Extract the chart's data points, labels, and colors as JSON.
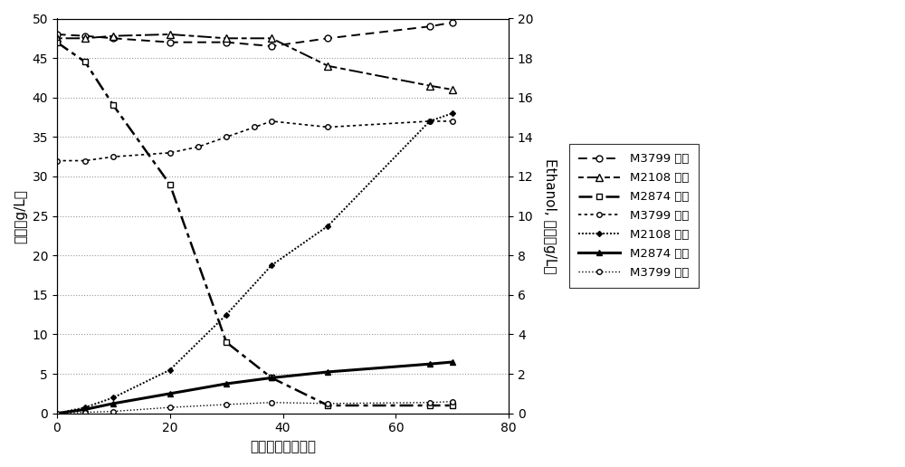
{
  "xlabel": "发酵时间（小时）",
  "ylabel_left": "木糖（g/L）",
  "ylabel_right": "Ethanol, 醋酸（g/L）",
  "xlim": [
    0,
    80
  ],
  "ylim_left": [
    0,
    50
  ],
  "ylim_right": [
    0,
    20
  ],
  "xticks": [
    0,
    20,
    40,
    60,
    80
  ],
  "yticks_left": [
    0,
    5,
    10,
    15,
    20,
    25,
    30,
    35,
    40,
    45,
    50
  ],
  "yticks_right": [
    0,
    2,
    4,
    6,
    8,
    10,
    12,
    14,
    16,
    18,
    20
  ],
  "M3799_xyl_x": [
    0,
    5,
    10,
    20,
    30,
    38,
    48,
    66,
    70
  ],
  "M3799_xyl_y": [
    48.0,
    47.8,
    47.5,
    47.0,
    47.0,
    46.5,
    47.5,
    49.0,
    49.5
  ],
  "M2108_xyl_x": [
    0,
    5,
    10,
    20,
    30,
    38,
    48,
    66,
    70
  ],
  "M2108_xyl_y": [
    47.5,
    47.5,
    47.8,
    48.0,
    47.5,
    47.5,
    44.0,
    41.5,
    41.0
  ],
  "M2874_xyl_x": [
    0,
    5,
    10,
    20,
    30,
    38,
    48,
    66,
    70
  ],
  "M2874_xyl_y": [
    47.0,
    44.5,
    39.0,
    29.0,
    9.0,
    4.5,
    1.0,
    1.0,
    1.0
  ],
  "M3799_eth_x": [
    0,
    5,
    10,
    20,
    25,
    30,
    35,
    38,
    48,
    66,
    70
  ],
  "M3799_eth_y": [
    12.8,
    12.8,
    13.0,
    13.2,
    13.5,
    14.0,
    14.5,
    14.8,
    14.5,
    14.8,
    14.8
  ],
  "M2108_eth_x": [
    0,
    5,
    10,
    20,
    30,
    38,
    48,
    66,
    70
  ],
  "M2108_eth_y": [
    0,
    0.3,
    0.8,
    2.2,
    5.0,
    7.5,
    9.5,
    14.8,
    15.2
  ],
  "M2874_eth_x": [
    0,
    5,
    10,
    20,
    30,
    38,
    48,
    66,
    70
  ],
  "M2874_eth_y": [
    0.0,
    0.2,
    0.5,
    1.0,
    1.5,
    1.8,
    2.1,
    2.5,
    2.6
  ],
  "M3799_ace_x": [
    0,
    5,
    10,
    20,
    30,
    38,
    48,
    66,
    70
  ],
  "M3799_ace_y": [
    0,
    0.05,
    0.1,
    0.3,
    0.45,
    0.55,
    0.5,
    0.55,
    0.6
  ],
  "background_color": "#ffffff",
  "font_size": 11,
  "legend_fontsize": 9.5
}
